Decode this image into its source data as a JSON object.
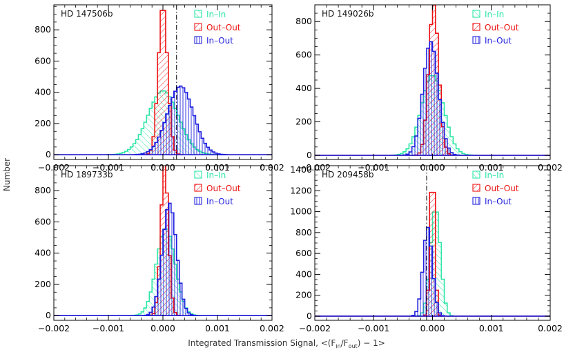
{
  "figure": {
    "xlabel": "Integrated Transmission Signal, <(F",
    "xlabel_in": "in",
    "xlabel_mid": "/F",
    "xlabel_out": "out",
    "xlabel_end": ") − 1>",
    "ylabel": "Number"
  },
  "chart_data": [
    {
      "type": "histogram",
      "title": "HD 147506b",
      "xlim": [
        -0.002,
        0.002
      ],
      "ylim": [
        -30,
        960
      ],
      "xticks": [
        -0.002,
        -0.001,
        0.0,
        0.001,
        0.002
      ],
      "xtick_labels": [
        "−0.002",
        "−0.001",
        "0.000",
        "0.001",
        "0.002"
      ],
      "yticks": [
        0,
        200,
        400,
        600,
        800
      ],
      "vline": 0.00025,
      "series": [
        {
          "name": "In–In",
          "color": "#2ee6a6",
          "hatch": "back",
          "mu": 0.0,
          "sigma": 0.00028,
          "peak": 410
        },
        {
          "name": "Out–Out",
          "color": "#ee1111",
          "hatch": "fwd",
          "mu": 0.0,
          "sigma": 8.5e-05,
          "peak": 965
        },
        {
          "name": "In–Out",
          "color": "#1f1fe0",
          "hatch": "vert",
          "mu": 0.00032,
          "sigma": 0.00024,
          "peak": 440
        }
      ]
    },
    {
      "type": "histogram",
      "title": "HD 149026b",
      "xlim": [
        -0.002,
        0.002
      ],
      "ylim": [
        -25,
        900
      ],
      "xticks": [
        -0.002,
        -0.001,
        0.0,
        0.001,
        0.002
      ],
      "xtick_labels": [
        "−0.002",
        "−0.001",
        "0.000",
        "0.001",
        "0.002"
      ],
      "yticks": [
        0,
        200,
        400,
        600,
        800
      ],
      "vline": null,
      "series": [
        {
          "name": "In–In",
          "color": "#2ee6a6",
          "hatch": "back",
          "mu": 0.0,
          "sigma": 0.00019,
          "peak": 480
        },
        {
          "name": "Out–Out",
          "color": "#ee1111",
          "hatch": "fwd",
          "mu": 2e-05,
          "sigma": 8.5e-05,
          "peak": 900
        },
        {
          "name": "In–Out",
          "color": "#1f1fe0",
          "hatch": "vert",
          "mu": -3e-05,
          "sigma": 0.00013,
          "peak": 680
        }
      ]
    },
    {
      "type": "histogram",
      "title": "HD 189733b",
      "xlim": [
        -0.002,
        0.002
      ],
      "ylim": [
        -30,
        960
      ],
      "xticks": [
        -0.002,
        -0.001,
        0.0,
        0.001,
        0.002
      ],
      "xtick_labels": [
        "−0.002",
        "−0.001",
        "0.000",
        "0.001",
        "0.002"
      ],
      "yticks": [
        0,
        200,
        400,
        600,
        800
      ],
      "vline": null,
      "series": [
        {
          "name": "In–In",
          "color": "#2ee6a6",
          "hatch": "back",
          "mu": 5e-05,
          "sigma": 0.00017,
          "peak": 560
        },
        {
          "name": "Out–Out",
          "color": "#ee1111",
          "hatch": "fwd",
          "mu": 3e-05,
          "sigma": 7e-05,
          "peak": 965
        },
        {
          "name": "In–Out",
          "color": "#1f1fe0",
          "hatch": "vert",
          "mu": 0.00012,
          "sigma": 0.00013,
          "peak": 720
        }
      ]
    },
    {
      "type": "histogram",
      "title": "HD 209458b",
      "xlim": [
        -0.002,
        0.002
      ],
      "ylim": [
        -40,
        1440
      ],
      "xticks": [
        -0.002,
        -0.001,
        0.0,
        0.001,
        0.002
      ],
      "xtick_labels": [
        "−0.002",
        "−0.001",
        "0.000",
        "0.001",
        "0.002"
      ],
      "yticks": [
        0,
        200,
        400,
        600,
        800,
        1000,
        1200,
        1400
      ],
      "vline": -0.0001,
      "series": [
        {
          "name": "In–In",
          "color": "#2ee6a6",
          "hatch": "back",
          "mu": 5e-05,
          "sigma": 8.5e-05,
          "peak": 1040
        },
        {
          "name": "Out–Out",
          "color": "#ee1111",
          "hatch": "fwd",
          "mu": 0.0,
          "sigma": 4e-05,
          "peak": 1440
        },
        {
          "name": "In–Out",
          "color": "#1f1fe0",
          "hatch": "vert",
          "mu": -8e-05,
          "sigma": 8e-05,
          "peak": 850
        }
      ]
    }
  ]
}
